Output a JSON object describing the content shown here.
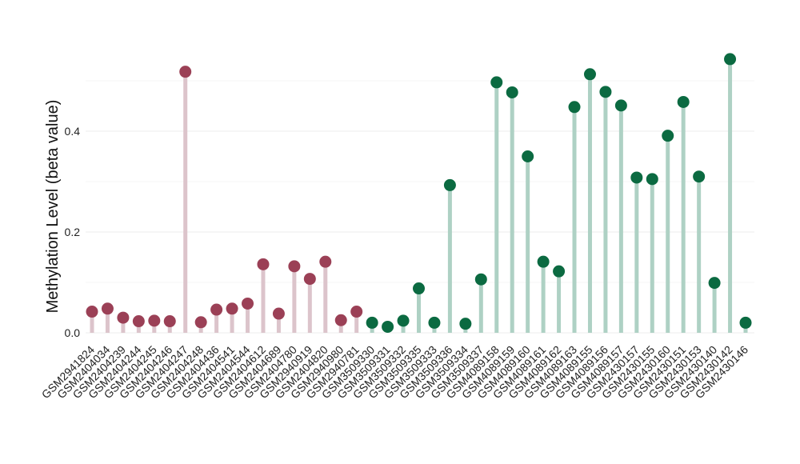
{
  "chart_data": {
    "type": "lollipop",
    "title": "",
    "xlabel": "",
    "ylabel": "Methylation Level (beta value)",
    "ylim": [
      -0.01,
      0.59
    ],
    "yticks": [
      0.0,
      0.2,
      0.4
    ],
    "ytick_labels": [
      "0.0",
      "0.2",
      "0.4"
    ],
    "grid": true,
    "legend": "none",
    "colors": {
      "group_a_point": "#9b4056",
      "group_a_stem": "#dcc4cb",
      "group_b_point": "#0b6a41",
      "group_b_stem": "#aed1c4",
      "grid": "#ececec"
    },
    "categories": [
      "GSM2941824",
      "GSM2404034",
      "GSM2404239",
      "GSM2404244",
      "GSM2404245",
      "GSM2404246",
      "GSM2404247",
      "GSM2404248",
      "GSM2404436",
      "GSM2404541",
      "GSM2404544",
      "GSM2404612",
      "GSM2404689",
      "GSM2404780",
      "GSM2940919",
      "GSM2404820",
      "GSM2940980",
      "GSM2940781",
      "GSM3509330",
      "GSM3509331",
      "GSM3509332",
      "GSM3509335",
      "GSM3509333",
      "GSM3509336",
      "GSM3509334",
      "GSM3509337",
      "GSM4089158",
      "GSM4089159",
      "GSM4089160",
      "GSM4089161",
      "GSM4089162",
      "GSM4089163",
      "GSM4089155",
      "GSM4089156",
      "GSM4089157",
      "GSM2430157",
      "GSM2430155",
      "GSM2430160",
      "GSM2430151",
      "GSM2430153",
      "GSM2430140",
      "GSM2430142",
      "GSM2430146"
    ],
    "values": [
      0.042,
      0.048,
      0.03,
      0.023,
      0.024,
      0.023,
      0.518,
      0.021,
      0.046,
      0.048,
      0.058,
      0.136,
      0.038,
      0.132,
      0.107,
      0.141,
      0.025,
      0.042,
      0.02,
      0.012,
      0.024,
      0.088,
      0.02,
      0.293,
      0.018,
      0.106,
      0.497,
      0.477,
      0.35,
      0.141,
      0.122,
      0.448,
      0.513,
      0.478,
      0.451,
      0.308,
      0.305,
      0.391,
      0.458,
      0.31,
      0.099,
      0.543,
      0.02
    ],
    "groups": [
      "a",
      "a",
      "a",
      "a",
      "a",
      "a",
      "a",
      "a",
      "a",
      "a",
      "a",
      "a",
      "a",
      "a",
      "a",
      "a",
      "a",
      "a",
      "b",
      "b",
      "b",
      "b",
      "b",
      "b",
      "b",
      "b",
      "b",
      "b",
      "b",
      "b",
      "b",
      "b",
      "b",
      "b",
      "b",
      "b",
      "b",
      "b",
      "b",
      "b",
      "b",
      "b",
      "b"
    ]
  }
}
